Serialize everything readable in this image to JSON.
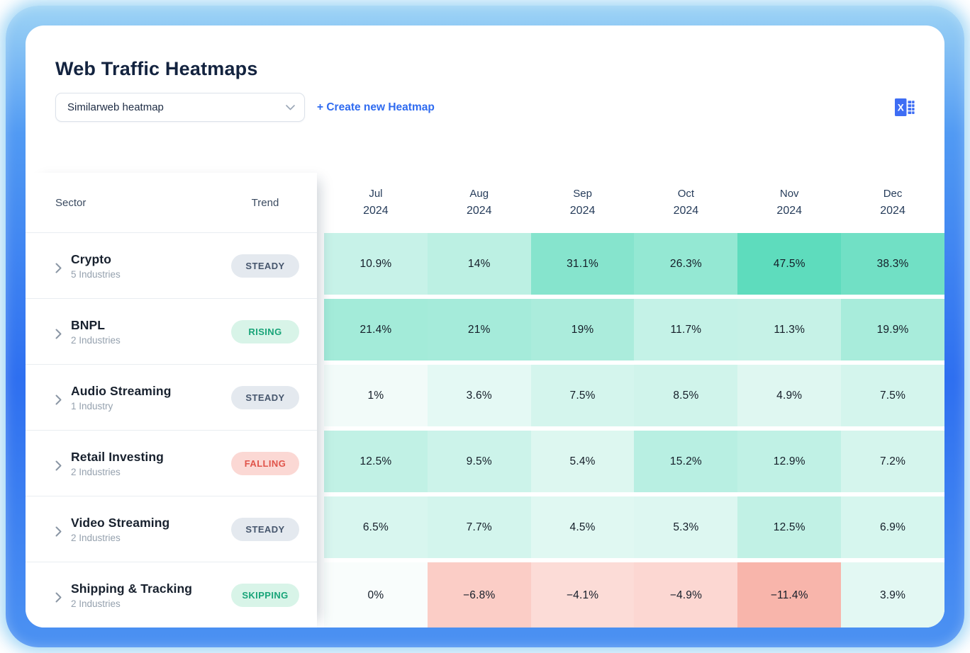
{
  "page": {
    "title": "Web Traffic Heatmaps"
  },
  "controls": {
    "heatmap_select": {
      "value": "Similarweb heatmap",
      "chevron_icon": "chevron-down-icon"
    },
    "create_link": "+ Create new Heatmap",
    "excel_icon": "excel-export-icon"
  },
  "table": {
    "columns": {
      "sector": "Sector",
      "trend": "Trend"
    },
    "months": [
      {
        "month": "Jul",
        "year": "2024"
      },
      {
        "month": "Aug",
        "year": "2024"
      },
      {
        "month": "Sep",
        "year": "2024"
      },
      {
        "month": "Oct",
        "year": "2024"
      },
      {
        "month": "Nov",
        "year": "2024"
      },
      {
        "month": "Dec",
        "year": "2024"
      }
    ],
    "rows": [
      {
        "sector": "Crypto",
        "industries": "5 Industries",
        "trend": {
          "label": "STEADY",
          "type": "steady"
        },
        "cells": [
          {
            "label": "10.9%",
            "value": 10.9
          },
          {
            "label": "14%",
            "value": 14
          },
          {
            "label": "31.1%",
            "value": 31.1
          },
          {
            "label": "26.3%",
            "value": 26.3
          },
          {
            "label": "47.5%",
            "value": 47.5
          },
          {
            "label": "38.3%",
            "value": 38.3
          }
        ]
      },
      {
        "sector": "BNPL",
        "industries": "2 Industries",
        "trend": {
          "label": "RISING",
          "type": "rising"
        },
        "cells": [
          {
            "label": "21.4%",
            "value": 21.4
          },
          {
            "label": "21%",
            "value": 21
          },
          {
            "label": "19%",
            "value": 19
          },
          {
            "label": "11.7%",
            "value": 11.7
          },
          {
            "label": "11.3%",
            "value": 11.3
          },
          {
            "label": "19.9%",
            "value": 19.9
          }
        ]
      },
      {
        "sector": "Audio Streaming",
        "industries": "1 Industry",
        "trend": {
          "label": "STEADY",
          "type": "steady"
        },
        "cells": [
          {
            "label": "1%",
            "value": 1
          },
          {
            "label": "3.6%",
            "value": 3.6
          },
          {
            "label": "7.5%",
            "value": 7.5
          },
          {
            "label": "8.5%",
            "value": 8.5
          },
          {
            "label": "4.9%",
            "value": 4.9
          },
          {
            "label": "7.5%",
            "value": 7.5
          }
        ]
      },
      {
        "sector": "Retail Investing",
        "industries": "2 Industries",
        "trend": {
          "label": "FALLING",
          "type": "falling"
        },
        "cells": [
          {
            "label": "12.5%",
            "value": 12.5
          },
          {
            "label": "9.5%",
            "value": 9.5
          },
          {
            "label": "5.4%",
            "value": 5.4
          },
          {
            "label": "15.2%",
            "value": 15.2
          },
          {
            "label": "12.9%",
            "value": 12.9
          },
          {
            "label": "7.2%",
            "value": 7.2
          }
        ]
      },
      {
        "sector": "Video Streaming",
        "industries": "2 Industries",
        "trend": {
          "label": "STEADY",
          "type": "steady"
        },
        "cells": [
          {
            "label": "6.5%",
            "value": 6.5
          },
          {
            "label": "7.7%",
            "value": 7.7
          },
          {
            "label": "4.5%",
            "value": 4.5
          },
          {
            "label": "5.3%",
            "value": 5.3
          },
          {
            "label": "12.5%",
            "value": 12.5
          },
          {
            "label": "6.9%",
            "value": 6.9
          }
        ]
      },
      {
        "sector": "Shipping & Tracking",
        "industries": "2 Industries",
        "trend": {
          "label": "SKIPPING",
          "type": "skipping"
        },
        "cells": [
          {
            "label": "0%",
            "value": 0
          },
          {
            "label": "−6.8%",
            "value": -6.8
          },
          {
            "label": "−4.1%",
            "value": -4.1
          },
          {
            "label": "−4.9%",
            "value": -4.9
          },
          {
            "label": "−11.4%",
            "value": -11.4
          },
          {
            "label": "3.9%",
            "value": 3.9
          }
        ]
      }
    ]
  },
  "heat_scale": {
    "pos_max": 45,
    "neg_max": 12,
    "exponent": 0.8,
    "pos_base": "#f9fdfc",
    "pos_full": "#5edcbd",
    "neg_base": "#fffbfa",
    "neg_full": "#f8b2a8"
  },
  "colors": {
    "accent_blue": "#2f6bf0",
    "title_navy": "#13233f",
    "frame_blue": "#2e6ff0",
    "frame_glow": "#9ed4f5",
    "badge_steady_bg": "#e4e9ef",
    "badge_steady_text": "#46566d",
    "badge_green_bg": "#d8f4e8",
    "badge_green_text": "#18a478",
    "badge_red_bg": "#fbd8d4",
    "badge_red_text": "#e0544a",
    "excel_icon_blue": "#3e6df4"
  },
  "chart_data": {
    "type": "heatmap",
    "title": "Web Traffic Heatmaps",
    "x": [
      "Jul 2024",
      "Aug 2024",
      "Sep 2024",
      "Oct 2024",
      "Nov 2024",
      "Dec 2024"
    ],
    "rows": [
      "Crypto",
      "BNPL",
      "Audio Streaming",
      "Retail Investing",
      "Video Streaming",
      "Shipping & Tracking"
    ],
    "values": [
      [
        10.9,
        14,
        31.1,
        26.3,
        47.5,
        38.3
      ],
      [
        21.4,
        21,
        19,
        11.7,
        11.3,
        19.9
      ],
      [
        1,
        3.6,
        7.5,
        8.5,
        4.9,
        7.5
      ],
      [
        12.5,
        9.5,
        5.4,
        15.2,
        12.9,
        7.2
      ],
      [
        6.5,
        7.7,
        4.5,
        5.3,
        12.5,
        6.9
      ],
      [
        0,
        -6.8,
        -4.1,
        -4.9,
        -11.4,
        3.9
      ]
    ],
    "unit": "%",
    "color_scale": {
      "positive": "green",
      "negative": "red",
      "zero": "white"
    }
  }
}
